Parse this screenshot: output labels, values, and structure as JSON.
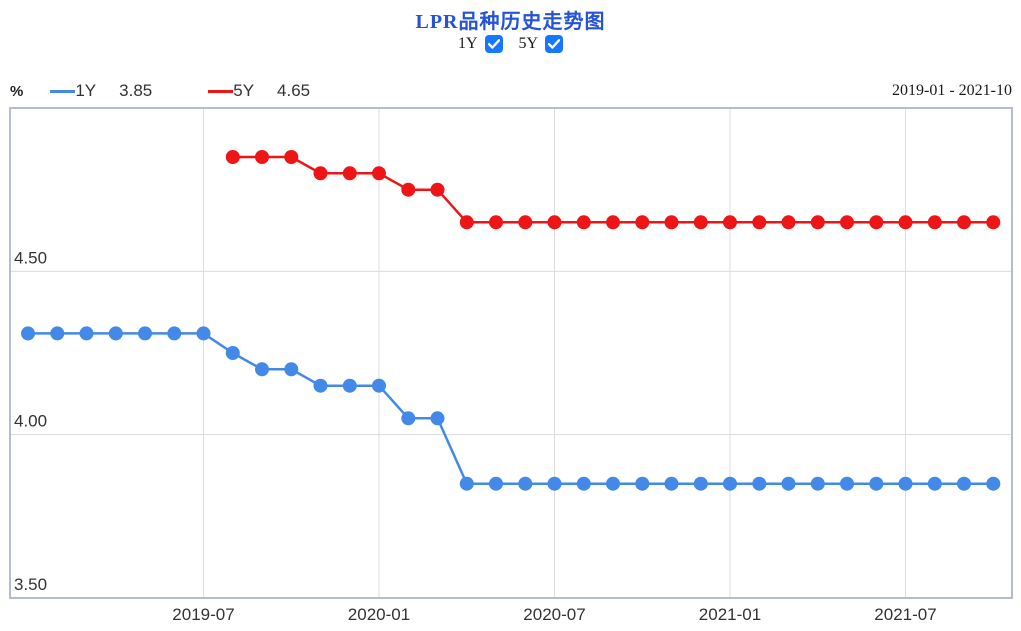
{
  "header": {
    "title": "LPR品种历史走势图",
    "toggles": [
      {
        "label": "1Y",
        "checked": true
      },
      {
        "label": "5Y",
        "checked": true
      }
    ],
    "date_range": "2019-01 - 2021-10"
  },
  "legend": {
    "unit": "%",
    "items": [
      {
        "name": "1Y",
        "value": "3.85",
        "color": "#4289e8"
      },
      {
        "name": "5Y",
        "value": "4.65",
        "color": "#ed1515"
      }
    ]
  },
  "colors": {
    "title": "#2453d6",
    "checkbox": "#1677ff",
    "series_1y": "#4289e8",
    "series_5y": "#ed1515",
    "grid": "#dcdcdc",
    "plot_border": "#b4bdc9",
    "axis_text": "#333333"
  },
  "chart_data": {
    "type": "line",
    "title": "LPR品种历史走势图",
    "xlabel": "",
    "ylabel": "%",
    "ylim": [
      3.5,
      5.0
    ],
    "grid": true,
    "legend_position": "top-left",
    "x": [
      "2019-01",
      "2019-02",
      "2019-03",
      "2019-04",
      "2019-05",
      "2019-06",
      "2019-07",
      "2019-08",
      "2019-09",
      "2019-10",
      "2019-11",
      "2019-12",
      "2020-01",
      "2020-02",
      "2020-03",
      "2020-04",
      "2020-05",
      "2020-06",
      "2020-07",
      "2020-08",
      "2020-09",
      "2020-10",
      "2020-11",
      "2020-12",
      "2021-01",
      "2021-02",
      "2021-03",
      "2021-04",
      "2021-05",
      "2021-06",
      "2021-07",
      "2021-08",
      "2021-09",
      "2021-10"
    ],
    "x_ticks": [
      {
        "label": "2019-07",
        "index": 6
      },
      {
        "label": "2020-01",
        "index": 12
      },
      {
        "label": "2020-07",
        "index": 18
      },
      {
        "label": "2021-01",
        "index": 24
      },
      {
        "label": "2021-07",
        "index": 30
      }
    ],
    "y_ticks": [
      {
        "label": "4.50",
        "value": 4.5
      },
      {
        "label": "4.00",
        "value": 4.0
      },
      {
        "label": "3.50",
        "value": 3.5
      }
    ],
    "series": [
      {
        "name": "1Y",
        "color": "#4289e8",
        "values": [
          4.31,
          4.31,
          4.31,
          4.31,
          4.31,
          4.31,
          4.31,
          4.25,
          4.2,
          4.2,
          4.15,
          4.15,
          4.15,
          4.05,
          4.05,
          3.85,
          3.85,
          3.85,
          3.85,
          3.85,
          3.85,
          3.85,
          3.85,
          3.85,
          3.85,
          3.85,
          3.85,
          3.85,
          3.85,
          3.85,
          3.85,
          3.85,
          3.85,
          3.85
        ]
      },
      {
        "name": "5Y",
        "color": "#ed1515",
        "values": [
          null,
          null,
          null,
          null,
          null,
          null,
          null,
          4.85,
          4.85,
          4.85,
          4.8,
          4.8,
          4.8,
          4.75,
          4.75,
          4.65,
          4.65,
          4.65,
          4.65,
          4.65,
          4.65,
          4.65,
          4.65,
          4.65,
          4.65,
          4.65,
          4.65,
          4.65,
          4.65,
          4.65,
          4.65,
          4.65,
          4.65,
          4.65
        ]
      }
    ]
  }
}
